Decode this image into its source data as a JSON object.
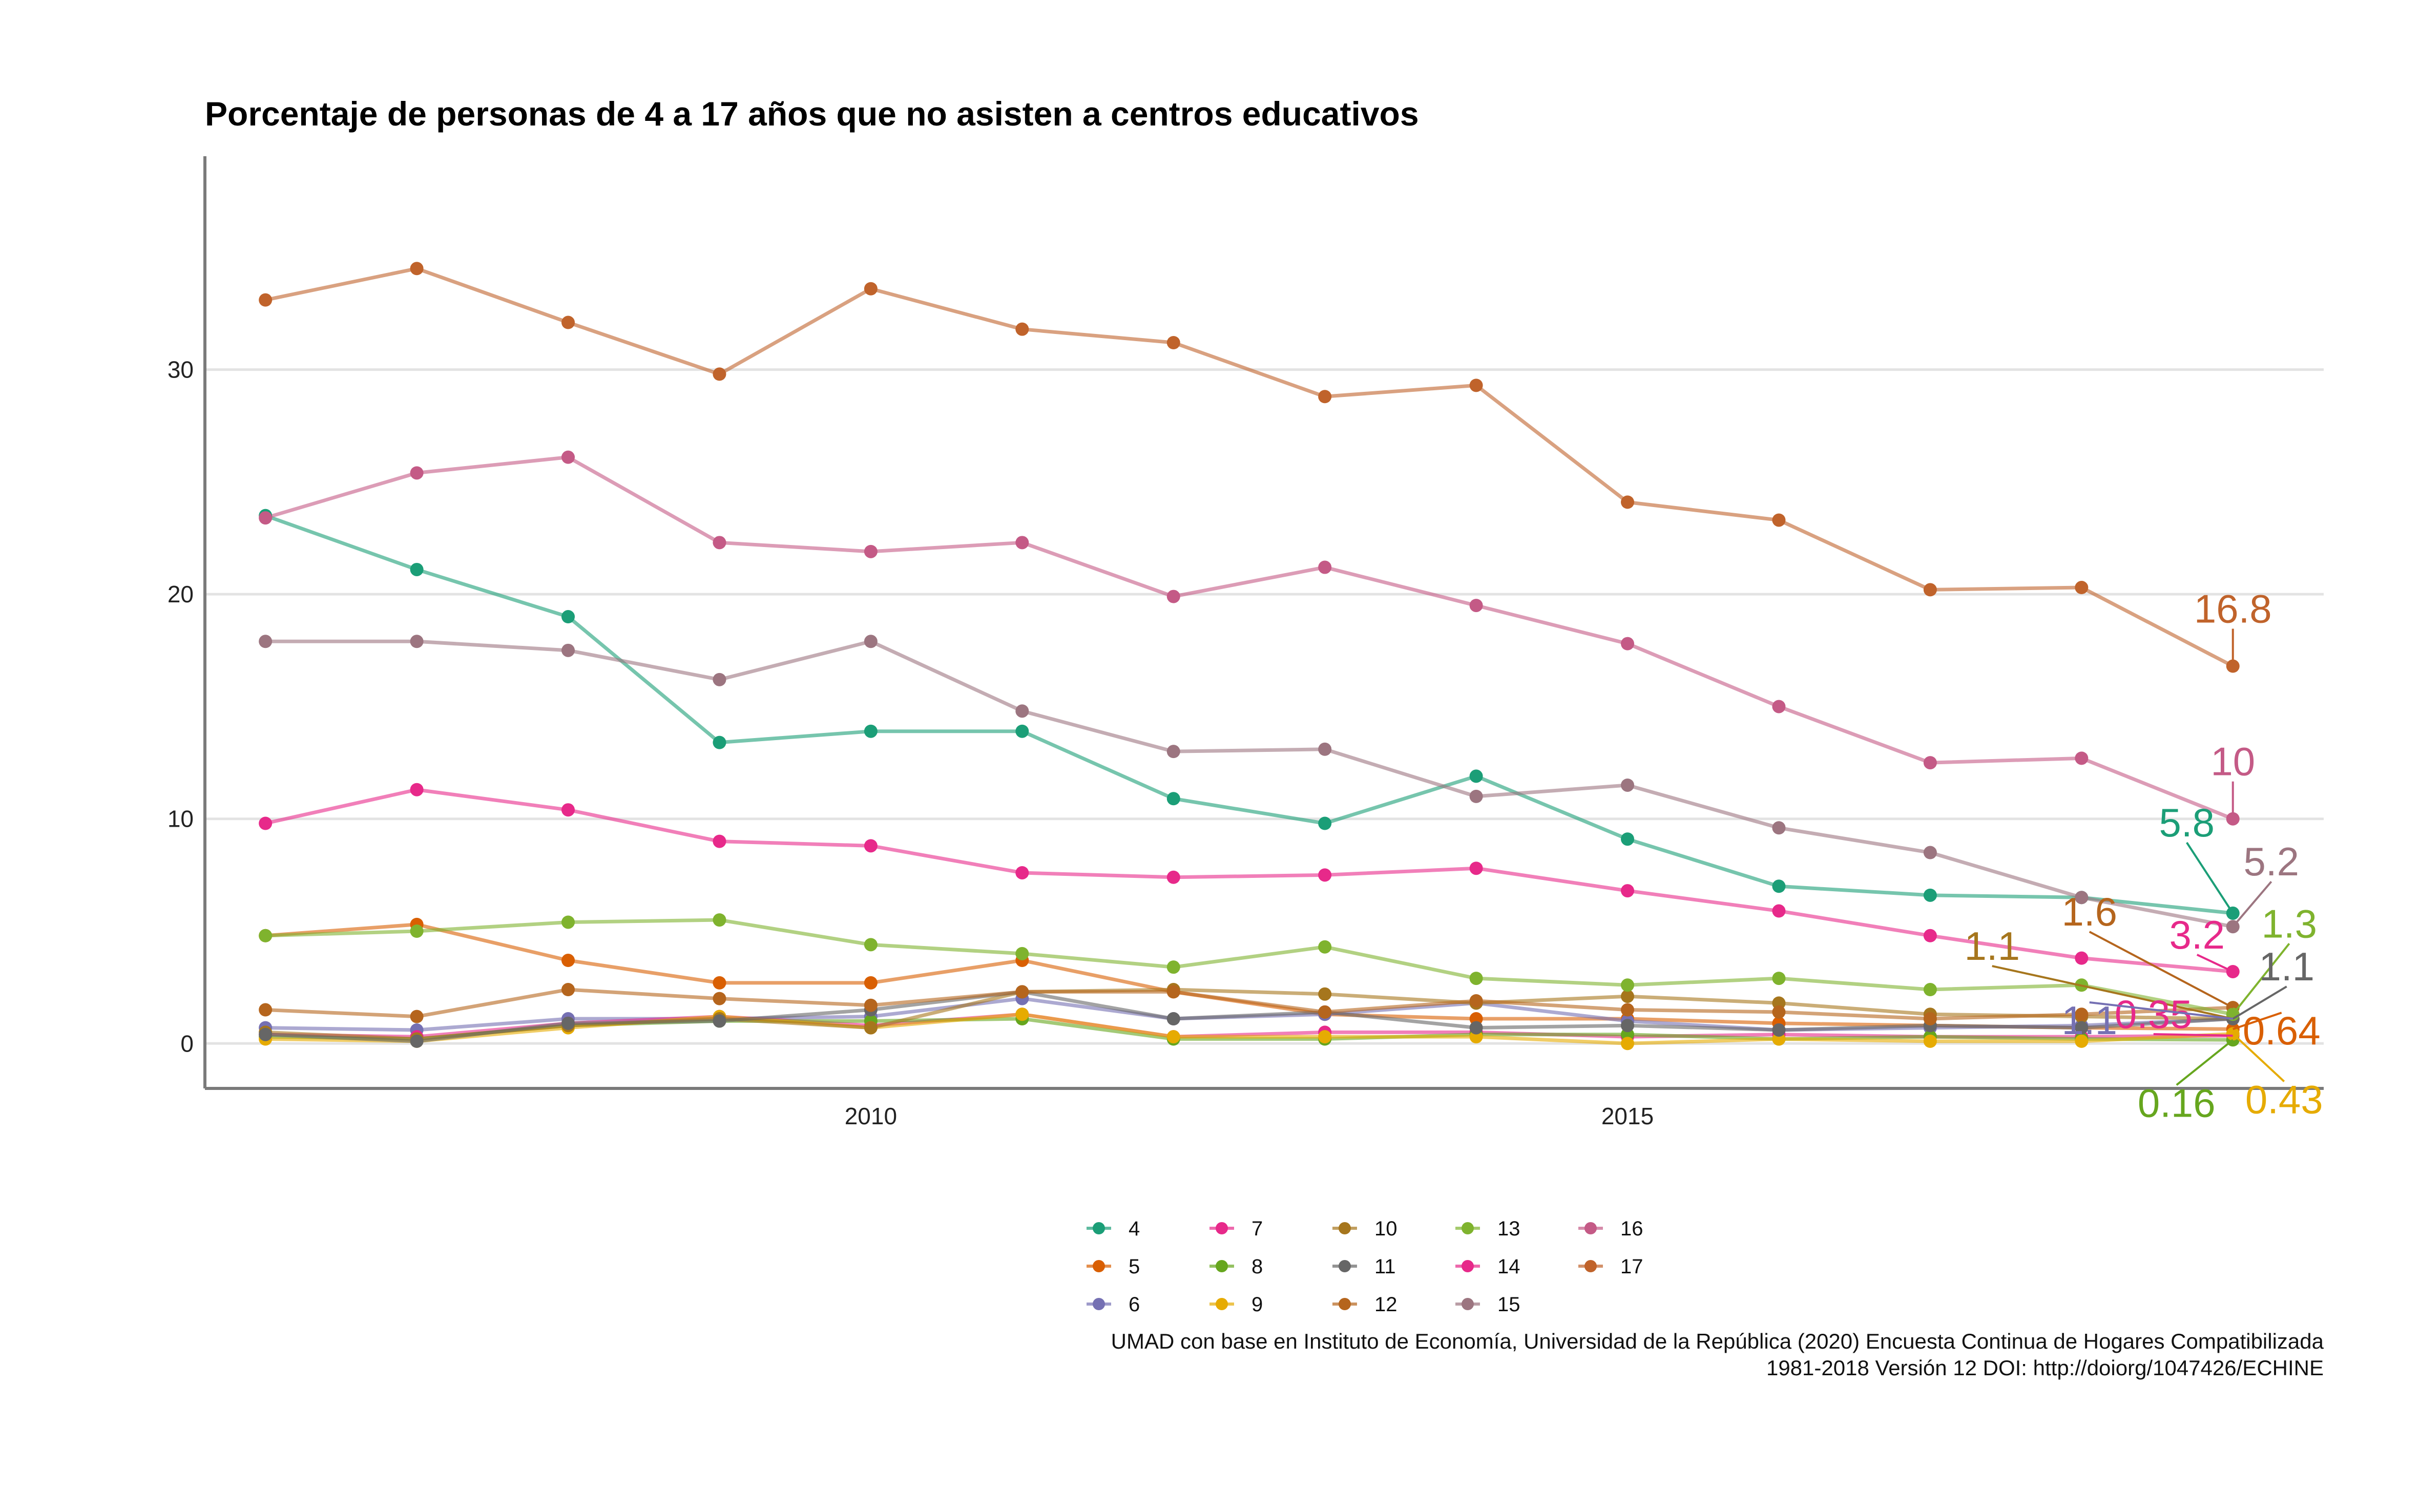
{
  "chart_data": {
    "type": "line",
    "title": "Porcentaje de personas de 4 a 17 años que no asisten a centros educativos",
    "x_tick_labels": [
      "2010",
      "2015"
    ],
    "y_tick_labels": [
      "0",
      "10",
      "20",
      "30"
    ],
    "xlim": [
      2005.6,
      2019.6
    ],
    "ylim": [
      -2,
      39.5
    ],
    "grid": "horizontal major gridlines",
    "legend_position": "bottom",
    "x": [
      2006,
      2007,
      2008,
      2009,
      2010,
      2011,
      2012,
      2013,
      2014,
      2015,
      2016,
      2017,
      2018,
      2019
    ],
    "series": [
      {
        "name": "4",
        "color": "#1B9E77",
        "values": [
          23.5,
          21.1,
          19.0,
          13.4,
          13.9,
          13.9,
          10.9,
          9.8,
          11.9,
          9.1,
          7.0,
          6.6,
          6.5,
          5.8
        ]
      },
      {
        "name": "5",
        "color": "#D95F02",
        "values": [
          4.8,
          5.3,
          3.7,
          2.7,
          2.7,
          3.7,
          2.3,
          1.3,
          1.1,
          1.1,
          0.9,
          0.8,
          0.7,
          0.64
        ]
      },
      {
        "name": "6",
        "color": "#7570B3",
        "values": [
          0.7,
          0.6,
          1.1,
          1.1,
          1.2,
          2.0,
          1.1,
          1.3,
          1.8,
          1.0,
          0.6,
          0.7,
          0.8,
          1.1
        ]
      },
      {
        "name": "7",
        "color": "#E7298A",
        "values": [
          0.4,
          0.3,
          0.9,
          1.2,
          0.8,
          1.3,
          0.3,
          0.5,
          0.5,
          0.3,
          0.4,
          0.3,
          0.3,
          0.35
        ]
      },
      {
        "name": "8",
        "color": "#66A61E",
        "values": [
          0.3,
          0.2,
          0.8,
          1.0,
          1.0,
          1.1,
          0.2,
          0.2,
          0.4,
          0.4,
          0.2,
          0.3,
          0.2,
          0.16
        ]
      },
      {
        "name": "9",
        "color": "#E6AB02",
        "values": [
          0.2,
          0.1,
          0.7,
          1.2,
          0.7,
          1.3,
          0.3,
          0.3,
          0.3,
          0.0,
          0.2,
          0.1,
          0.1,
          0.43
        ]
      },
      {
        "name": "10",
        "color": "#A6761D",
        "values": [
          0.5,
          0.2,
          0.8,
          1.1,
          0.7,
          2.3,
          2.4,
          2.2,
          1.8,
          2.1,
          1.8,
          1.3,
          1.2,
          1.1
        ]
      },
      {
        "name": "11",
        "color": "#666666",
        "values": [
          0.4,
          0.1,
          0.9,
          1.0,
          1.5,
          2.3,
          1.1,
          1.4,
          0.7,
          0.8,
          0.6,
          0.8,
          0.7,
          1.1
        ]
      },
      {
        "name": "12",
        "color": "#B5651D",
        "values": [
          1.5,
          1.2,
          2.4,
          2.0,
          1.7,
          2.3,
          2.3,
          1.4,
          1.9,
          1.5,
          1.4,
          1.1,
          1.3,
          1.6
        ]
      },
      {
        "name": "13",
        "color": "#7FB32E",
        "values": [
          4.8,
          5.0,
          5.4,
          5.5,
          4.4,
          4.0,
          3.4,
          4.3,
          2.9,
          2.6,
          2.9,
          2.4,
          2.6,
          1.3
        ]
      },
      {
        "name": "14",
        "color": "#E7298A",
        "values": [
          9.8,
          11.3,
          10.4,
          9.0,
          8.8,
          7.6,
          7.4,
          7.5,
          7.8,
          6.8,
          5.9,
          4.8,
          3.8,
          3.2
        ]
      },
      {
        "name": "15",
        "color": "#9C7580",
        "values": [
          17.9,
          17.9,
          17.5,
          16.2,
          17.9,
          14.8,
          13.0,
          13.1,
          11.0,
          11.5,
          9.6,
          8.5,
          6.5,
          5.2
        ]
      },
      {
        "name": "16",
        "color": "#C45A86",
        "values": [
          23.4,
          25.4,
          26.1,
          22.3,
          21.9,
          22.3,
          19.9,
          21.2,
          19.5,
          17.8,
          15.0,
          12.5,
          12.7,
          10.0
        ]
      },
      {
        "name": "17",
        "color": "#C0632B",
        "values": [
          33.1,
          34.5,
          32.1,
          29.8,
          33.6,
          31.8,
          31.2,
          28.8,
          29.3,
          24.1,
          23.3,
          20.2,
          20.3,
          16.8
        ]
      }
    ],
    "end_labels": [
      {
        "series": "17",
        "text": "16.8",
        "color": "#C0632B"
      },
      {
        "series": "16",
        "text": "10",
        "color": "#C45A86"
      },
      {
        "series": "4",
        "text": "5.8",
        "color": "#1B9E77"
      },
      {
        "series": "15",
        "text": "5.2",
        "color": "#9C7580"
      },
      {
        "series": "14",
        "text": "3.2",
        "color": "#E7298A"
      },
      {
        "series": "12",
        "text": "1.6",
        "color": "#B5651D"
      },
      {
        "series": "13",
        "text": "1.3",
        "color": "#7FB32E"
      },
      {
        "series": "10",
        "text": "1.1",
        "color": "#A6761D"
      },
      {
        "series": "7",
        "text": "0.35",
        "color": "#E7298A"
      },
      {
        "series": "11",
        "text": "1.1",
        "color": "#666666"
      },
      {
        "series": "6",
        "text": "1.1",
        "color": "#7570B3"
      },
      {
        "series": "5",
        "text": "0.64",
        "color": "#D95F02"
      },
      {
        "series": "8",
        "text": "0.16",
        "color": "#66A61E"
      },
      {
        "series": "9",
        "text": "0.43",
        "color": "#E6AB02"
      }
    ],
    "caption": [
      "UMAD con base en Instituto de Economía, Universidad de la República (2020) Encuesta Continua de Hogares Compatibilizada",
      "1981-2018 Versión 12 DOI: http://doiorg/1047426/ECHINE"
    ]
  }
}
